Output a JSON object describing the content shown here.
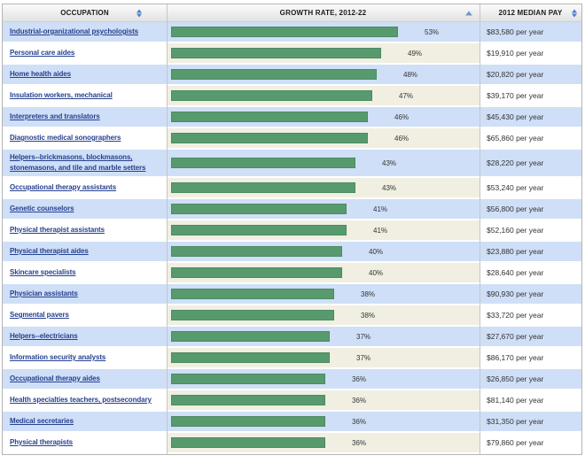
{
  "table": {
    "columns": [
      {
        "label": "OCCUPATION",
        "sort_icon": "sort-both-icon",
        "sort_state": "sortable"
      },
      {
        "label": "GROWTH RATE, 2012-22",
        "sort_icon": "sort-up-icon",
        "sort_state": "sorted"
      },
      {
        "label": "2012 MEDIAN PAY",
        "sort_icon": "sort-both-icon",
        "sort_state": "sortable"
      }
    ],
    "rows": [
      {
        "occupation": "Industrial-organizational psychologists",
        "growth": "53%",
        "pay": "$83,580 per year"
      },
      {
        "occupation": "Personal care aides",
        "growth": "49%",
        "pay": "$19,910 per year"
      },
      {
        "occupation": "Home health aides",
        "growth": "48%",
        "pay": "$20,820 per year"
      },
      {
        "occupation": "Insulation workers, mechanical",
        "growth": "47%",
        "pay": "$39,170 per year"
      },
      {
        "occupation": "Interpreters and translators",
        "growth": "46%",
        "pay": "$45,430 per year"
      },
      {
        "occupation": "Diagnostic medical sonographers",
        "growth": "46%",
        "pay": "$65,860 per year"
      },
      {
        "occupation": "Helpers--brickmasons, blockmasons, stonemasons, and tile and marble setters",
        "growth": "43%",
        "pay": "$28,220 per year"
      },
      {
        "occupation": "Occupational therapy assistants",
        "growth": "43%",
        "pay": "$53,240 per year"
      },
      {
        "occupation": "Genetic counselors",
        "growth": "41%",
        "pay": "$56,800 per year"
      },
      {
        "occupation": "Physical therapist assistants",
        "growth": "41%",
        "pay": "$52,160 per year"
      },
      {
        "occupation": "Physical therapist aides",
        "growth": "40%",
        "pay": "$23,880 per year"
      },
      {
        "occupation": "Skincare specialists",
        "growth": "40%",
        "pay": "$28,640 per year"
      },
      {
        "occupation": "Physician assistants",
        "growth": "38%",
        "pay": "$90,930 per year"
      },
      {
        "occupation": "Segmental pavers",
        "growth": "38%",
        "pay": "$33,720 per year"
      },
      {
        "occupation": "Helpers--electricians",
        "growth": "37%",
        "pay": "$27,670 per year"
      },
      {
        "occupation": "Information security analysts",
        "growth": "37%",
        "pay": "$86,170 per year"
      },
      {
        "occupation": "Occupational therapy aides",
        "growth": "36%",
        "pay": "$26,850 per year"
      },
      {
        "occupation": "Health specialties teachers, postsecondary",
        "growth": "36%",
        "pay": "$81,140 per year"
      },
      {
        "occupation": "Medical secretaries",
        "growth": "36%",
        "pay": "$31,350 per year"
      },
      {
        "occupation": "Physical therapists",
        "growth": "36%",
        "pay": "$79,860 per year"
      }
    ]
  },
  "chart_data": {
    "type": "bar",
    "orientation": "horizontal",
    "categories": [
      "Industrial-organizational psychologists",
      "Personal care aides",
      "Home health aides",
      "Insulation workers, mechanical",
      "Interpreters and translators",
      "Diagnostic medical sonographers",
      "Helpers--brickmasons, blockmasons, stonemasons, and tile and marble setters",
      "Occupational therapy assistants",
      "Genetic counselors",
      "Physical therapist assistants",
      "Physical therapist aides",
      "Skincare specialists",
      "Physician assistants",
      "Segmental pavers",
      "Helpers--electricians",
      "Information security analysts",
      "Occupational therapy aides",
      "Health specialties teachers, postsecondary",
      "Medical secretaries",
      "Physical therapists"
    ],
    "values": [
      53,
      49,
      48,
      47,
      46,
      46,
      43,
      43,
      41,
      41,
      40,
      40,
      38,
      38,
      37,
      37,
      36,
      36,
      36,
      36
    ],
    "value_labels": [
      "53%",
      "49%",
      "48%",
      "47%",
      "46%",
      "46%",
      "43%",
      "43%",
      "41%",
      "41%",
      "40%",
      "40%",
      "38%",
      "38%",
      "37%",
      "37%",
      "36%",
      "36%",
      "36%",
      "36%"
    ],
    "pay_2012_median": [
      "$83,580 per year",
      "$19,910 per year",
      "$20,820 per year",
      "$39,170 per year",
      "$45,430 per year",
      "$65,860 per year",
      "$28,220 per year",
      "$53,240 per year",
      "$56,800 per year",
      "$52,160 per year",
      "$23,880 per year",
      "$28,640 per year",
      "$90,930 per year",
      "$33,720 per year",
      "$27,670 per year",
      "$86,170 per year",
      "$26,850 per year",
      "$81,140 per year",
      "$31,350 per year",
      "$79,860 per year"
    ],
    "xlabel": "GROWTH RATE, 2012-22",
    "ylabel": "OCCUPATION",
    "xlim": [
      0,
      62
    ],
    "grid": false,
    "legend": false,
    "sort_order": "descending by growth rate",
    "bar_color": "#579a6e"
  },
  "colors": {
    "bar_green": "#579a6e",
    "bar_border": "#4e8a62",
    "row_blue": "#cfdff7",
    "row_cream": "#f0efe2",
    "link_blue": "#27418f",
    "sort_icon_blue": "#4d7ec6",
    "header_text": "#1a1a1a",
    "value_text": "#333333",
    "table_border": "#b5b5b5"
  }
}
